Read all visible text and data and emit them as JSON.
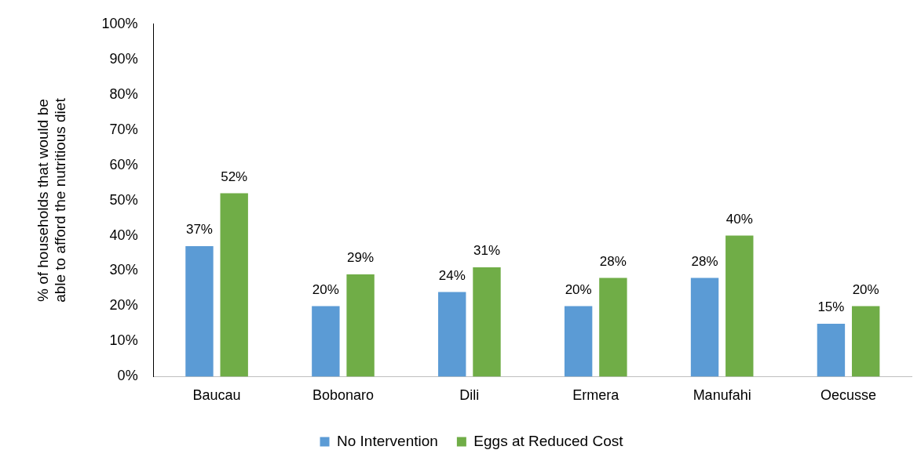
{
  "chart_data": {
    "type": "bar",
    "ylabel": "% of households that would be able to afford the nutritious diet",
    "categories": [
      "Baucau",
      "Bobonaro",
      "Dili",
      "Ermera",
      "Manufahi",
      "Oecusse"
    ],
    "series": [
      {
        "name": "No Intervention",
        "color": "#5b9bd5",
        "values": [
          37,
          20,
          24,
          20,
          28,
          15
        ],
        "value_labels": [
          "37%",
          "20%",
          "24%",
          "20%",
          "28%",
          "15%"
        ]
      },
      {
        "name": "Eggs at Reduced Cost",
        "color": "#70ad47",
        "values": [
          52,
          29,
          31,
          28,
          40,
          20
        ],
        "value_labels": [
          "52%",
          "29%",
          "31%",
          "28%",
          "40%",
          "20%"
        ]
      }
    ],
    "ylim": [
      0,
      100
    ],
    "yticks": [
      {
        "value": 0,
        "label": "0%"
      },
      {
        "value": 10,
        "label": "10%"
      },
      {
        "value": 20,
        "label": "20%"
      },
      {
        "value": 30,
        "label": "30%"
      },
      {
        "value": 40,
        "label": "40%"
      },
      {
        "value": 50,
        "label": "50%"
      },
      {
        "value": 60,
        "label": "60%"
      },
      {
        "value": 70,
        "label": "70%"
      },
      {
        "value": 80,
        "label": "80%"
      },
      {
        "value": 90,
        "label": "90%"
      },
      {
        "value": 100,
        "label": "100%"
      }
    ],
    "grid": false,
    "legend": "bottom"
  }
}
